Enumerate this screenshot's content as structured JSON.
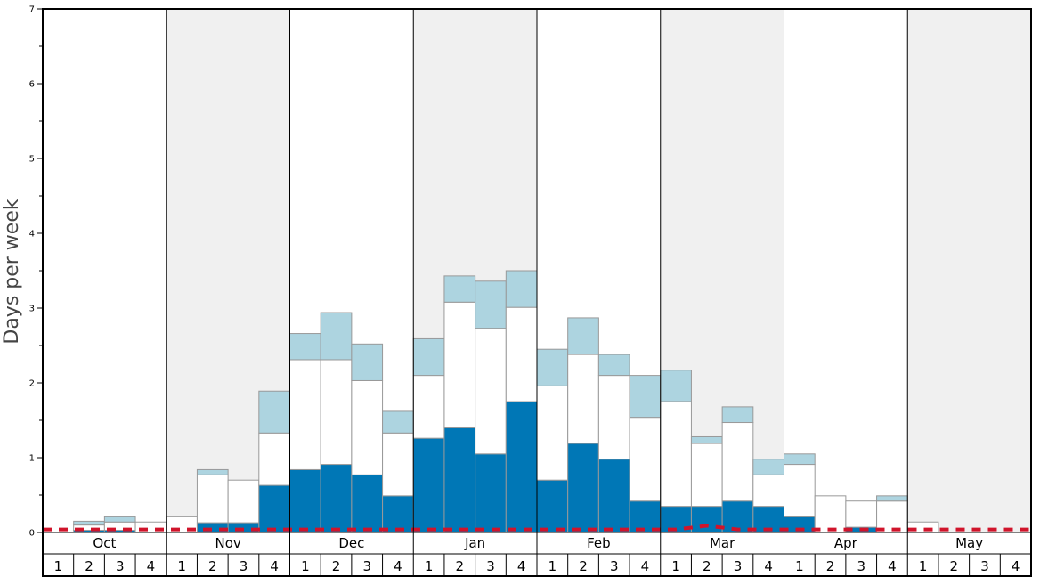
{
  "chart_data": {
    "type": "bar",
    "ylabel": "Days per week",
    "ylim": [
      0,
      7
    ],
    "y_ticks": [
      "0",
      "1",
      "2",
      "3",
      "4",
      "5",
      "6",
      "7"
    ],
    "months": [
      "Oct",
      "Nov",
      "Dec",
      "Jan",
      "Feb",
      "Mar",
      "Apr",
      "May"
    ],
    "week_labels": [
      "1",
      "2",
      "3",
      "4"
    ],
    "stacked": true,
    "series": [
      {
        "values": [
          0.0,
          0.03,
          0.03,
          0.0,
          0.0,
          0.13,
          0.13,
          0.63,
          0.84,
          0.91,
          0.77,
          0.49,
          1.26,
          1.4,
          1.05,
          1.75,
          0.7,
          1.19,
          0.98,
          0.42,
          0.35,
          0.35,
          0.42,
          0.35,
          0.21,
          0.0,
          0.07,
          0.0,
          0.0,
          0.0,
          0.0,
          0.0
        ]
      },
      {
        "values": [
          0.0,
          0.07,
          0.11,
          0.14,
          0.21,
          0.64,
          0.57,
          0.7,
          1.47,
          1.4,
          1.26,
          0.84,
          0.84,
          1.68,
          1.68,
          1.26,
          1.26,
          1.19,
          1.12,
          1.12,
          1.4,
          0.84,
          1.05,
          0.42,
          0.7,
          0.49,
          0.35,
          0.42,
          0.14,
          0.0,
          0.0,
          0.0
        ]
      },
      {
        "values": [
          0.0,
          0.05,
          0.07,
          0.0,
          0.0,
          0.07,
          0.0,
          0.56,
          0.35,
          0.63,
          0.49,
          0.29,
          0.49,
          0.35,
          0.63,
          0.49,
          0.49,
          0.49,
          0.28,
          0.56,
          0.42,
          0.09,
          0.21,
          0.21,
          0.14,
          0.0,
          0.0,
          0.07,
          0.0,
          0.0,
          0.0,
          0.0
        ]
      }
    ],
    "reference_line": [
      0.04,
      0.04,
      0.04,
      0.04,
      0.04,
      0.04,
      0.04,
      0.04,
      0.04,
      0.04,
      0.04,
      0.04,
      0.04,
      0.04,
      0.04,
      0.04,
      0.04,
      0.04,
      0.04,
      0.04,
      0.04,
      0.09,
      0.04,
      0.04,
      0.04,
      0.04,
      0.04,
      0.04,
      0.04,
      0.04,
      0.04,
      0.04
    ],
    "grid": false,
    "legend": "none"
  },
  "colors": {
    "series": [
      "#0077b6",
      "#ffffff",
      "#add4e0"
    ],
    "bar_edge": "#999999",
    "reference_line": "#d0142b",
    "band_alt": "#f0f0f0",
    "axis": "#000000",
    "ylabel": "#444444"
  }
}
